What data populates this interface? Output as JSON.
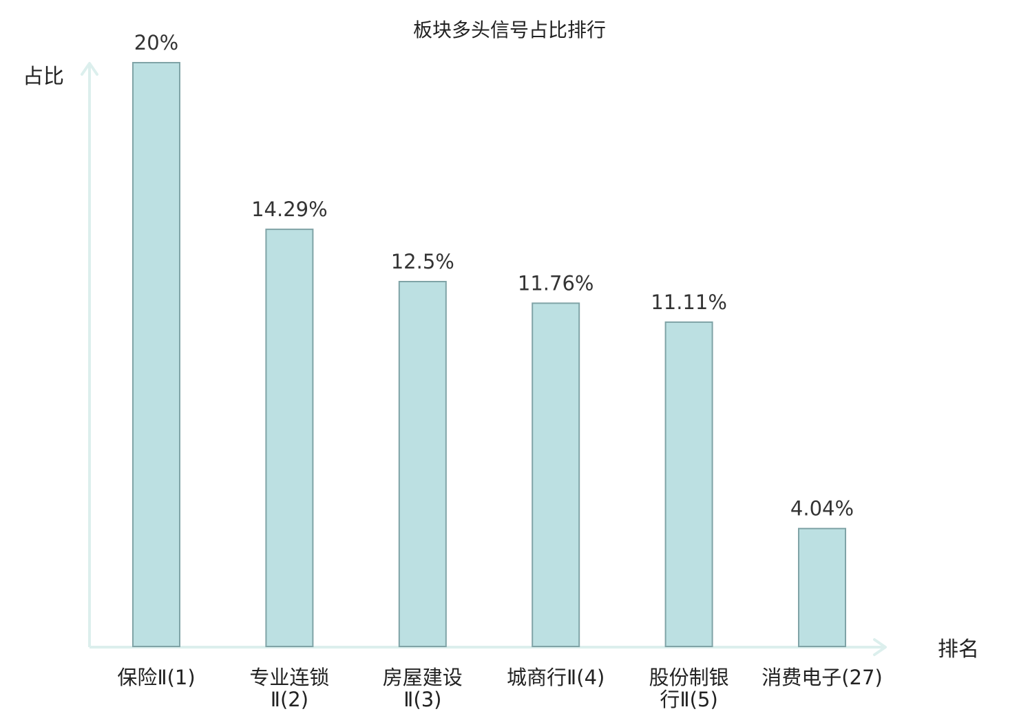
{
  "chart_data": {
    "type": "bar",
    "title": "板块多头信号占比排行",
    "xlabel": "排名",
    "ylabel": "占比",
    "categories": [
      [
        "保险Ⅱ(1)"
      ],
      [
        "专业连锁",
        "Ⅱ(2)"
      ],
      [
        "房屋建设",
        "Ⅱ(3)"
      ],
      [
        "城商行Ⅱ(4)"
      ],
      [
        "股份制银",
        "行Ⅱ(5)"
      ],
      [
        "消费电子(27)"
      ]
    ],
    "values": [
      20,
      14.29,
      12.5,
      11.76,
      11.11,
      4.04
    ],
    "value_labels": [
      "20%",
      "14.29%",
      "12.5%",
      "11.76%",
      "11.11%",
      "4.04%"
    ],
    "highlight_index": 5,
    "ylim": [
      0,
      20
    ],
    "grid": false,
    "legend": "none",
    "colors": {
      "bar_fill": "#bce0e2",
      "bar_stroke": "#7fa3a6",
      "axis": "#dcefed",
      "text": "#222222",
      "value_text": "#333333",
      "highlight_text": "#e0191b"
    }
  }
}
